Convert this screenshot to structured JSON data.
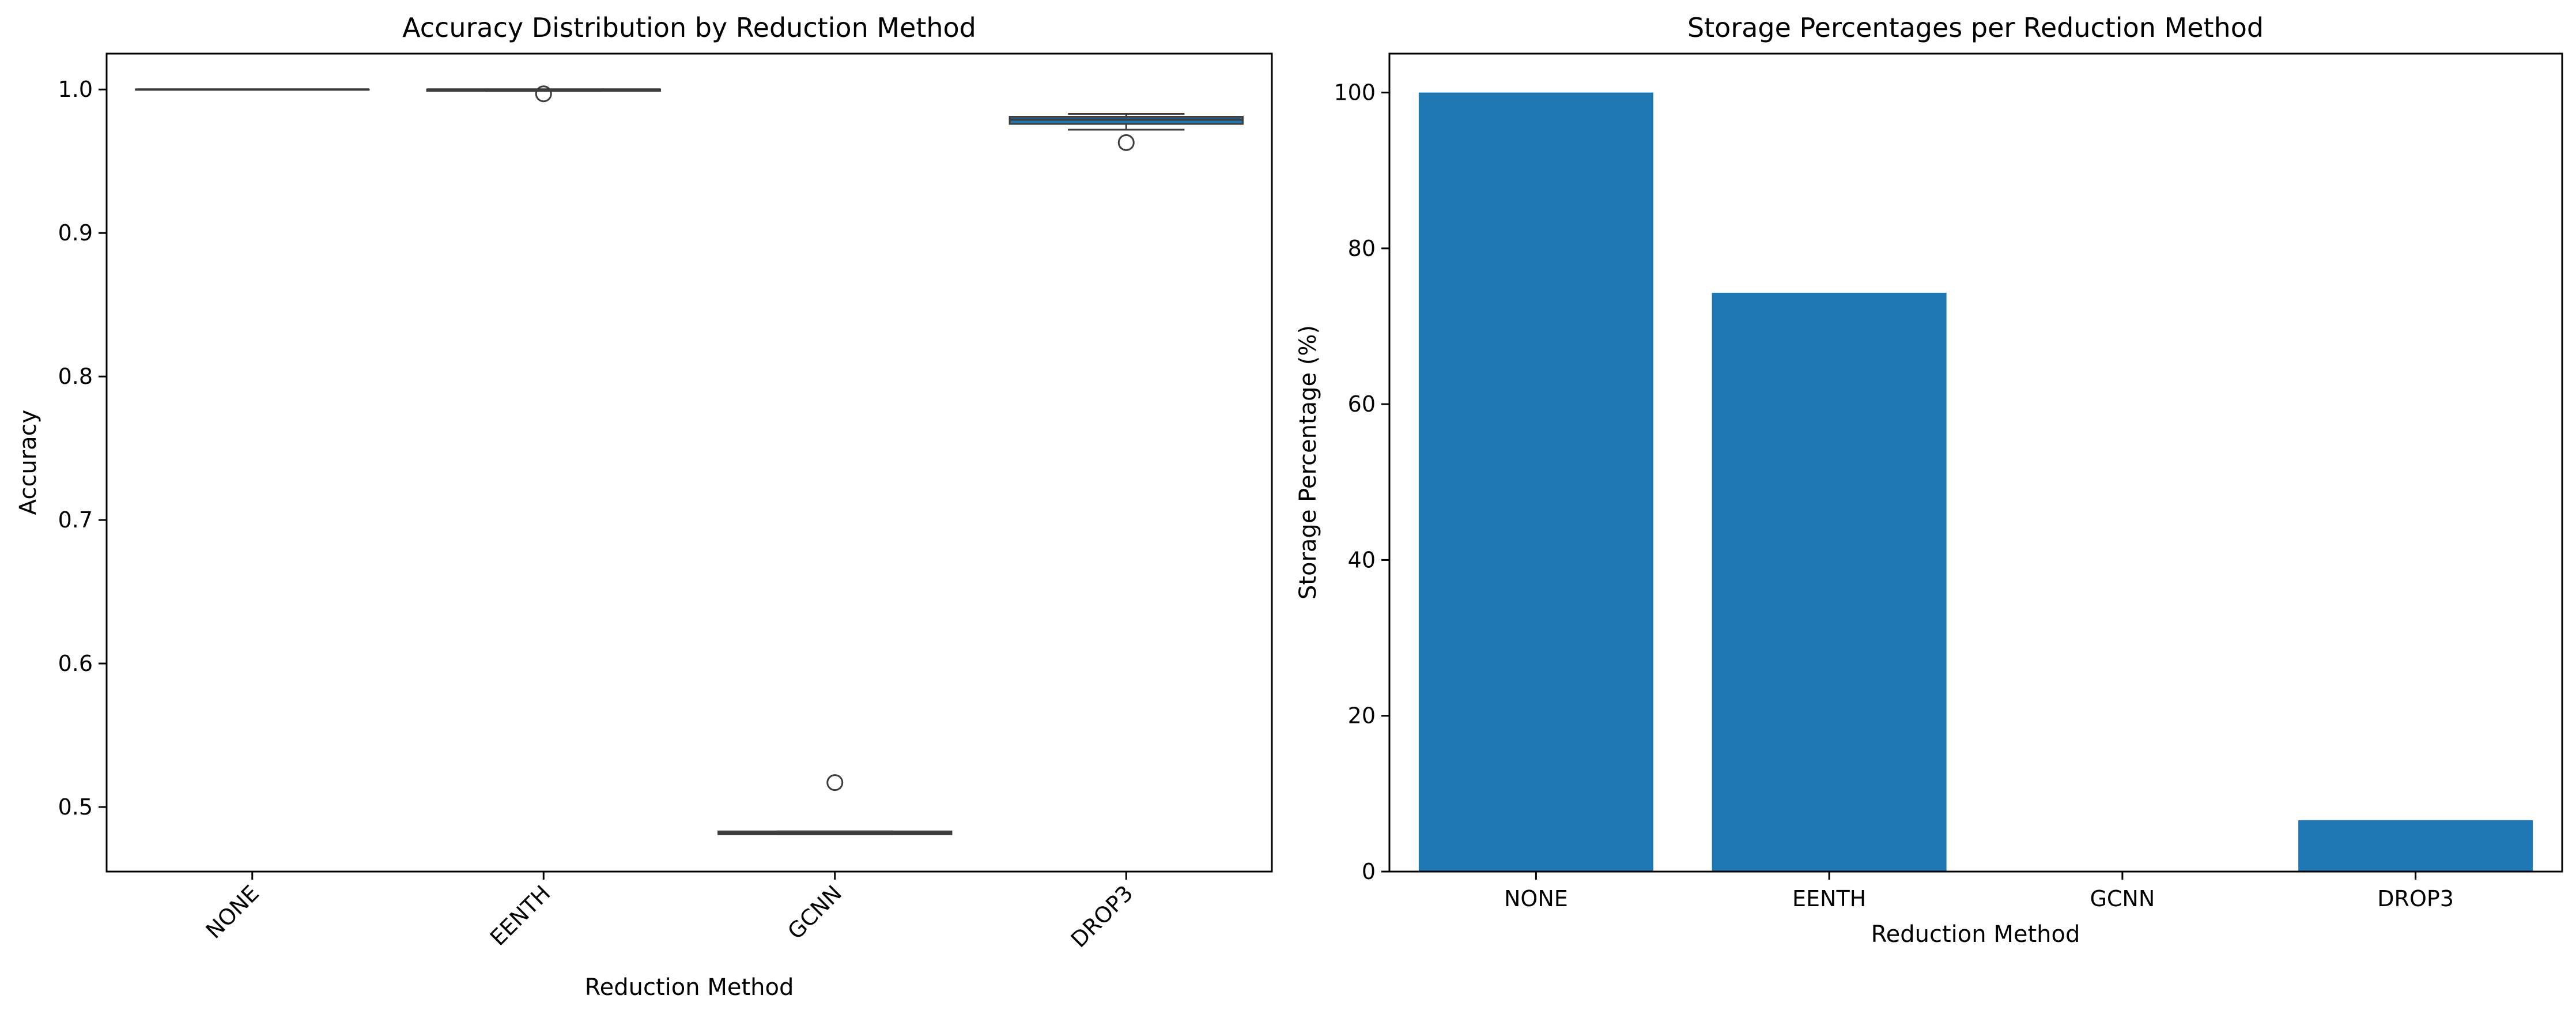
{
  "chart_data": [
    {
      "type": "box",
      "title": "Accuracy Distribution by Reduction Method",
      "xlabel": "Reduction Method",
      "ylabel": "Accuracy",
      "categories": [
        "NONE",
        "EENTH",
        "GCNN",
        "DROP3"
      ],
      "ylim": [
        0.455,
        1.025
      ],
      "yticks": [
        0.5,
        0.6,
        0.7,
        0.8,
        0.9,
        1.0
      ],
      "ytick_labels": [
        "0.5",
        "0.6",
        "0.7",
        "0.8",
        "0.9",
        "1.0"
      ],
      "x_tick_rotation_deg": 45,
      "grid": false,
      "box_color": "#1f77b4",
      "boxes": [
        {
          "category": "NONE",
          "whisker_low": 1.0,
          "q1": 1.0,
          "median": 1.0,
          "q3": 1.0,
          "whisker_high": 1.0,
          "outliers": []
        },
        {
          "category": "EENTH",
          "whisker_low": 0.999,
          "q1": 0.999,
          "median": 1.0,
          "q3": 1.0,
          "whisker_high": 1.0,
          "outliers": [
            0.997
          ]
        },
        {
          "category": "GCNN",
          "whisker_low": 0.481,
          "q1": 0.481,
          "median": 0.482,
          "q3": 0.483,
          "whisker_high": 0.483,
          "outliers": [
            0.517
          ]
        },
        {
          "category": "DROP3",
          "whisker_low": 0.972,
          "q1": 0.976,
          "median": 0.979,
          "q3": 0.981,
          "whisker_high": 0.983,
          "outliers": [
            0.963
          ]
        }
      ]
    },
    {
      "type": "bar",
      "title": "Storage Percentages per Reduction Method",
      "xlabel": "Reduction Method",
      "ylabel": "Storage Percentage (%)",
      "categories": [
        "NONE",
        "EENTH",
        "GCNN",
        "DROP3"
      ],
      "values": [
        100.0,
        74.3,
        0.0,
        6.6
      ],
      "ylim": [
        0,
        105
      ],
      "yticks": [
        0,
        20,
        40,
        60,
        80,
        100
      ],
      "ytick_labels": [
        "0",
        "20",
        "40",
        "60",
        "80",
        "100"
      ],
      "grid": false,
      "bar_color": "#1f77b4"
    }
  ]
}
